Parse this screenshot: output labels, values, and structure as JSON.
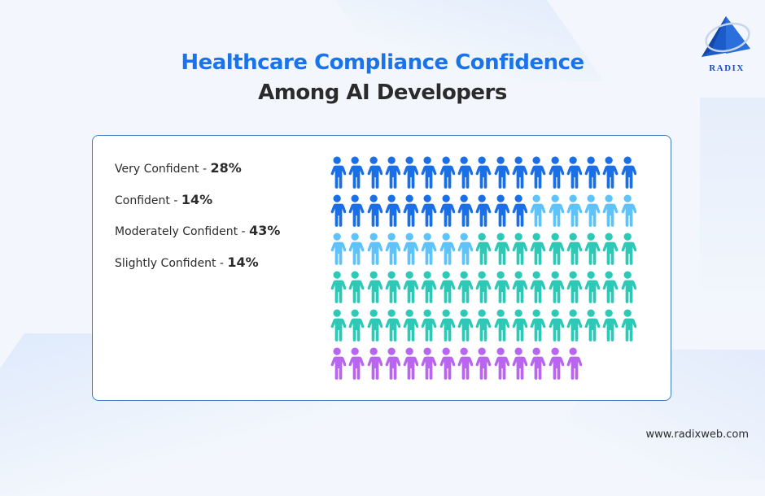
{
  "header": {
    "title_line1": "Healthcare Compliance Confidence",
    "title_line2": "Among AI Developers"
  },
  "logo": {
    "text": "RADIX"
  },
  "footer": {
    "url": "www.radixweb.com"
  },
  "legend": [
    {
      "label": "Very Confident - ",
      "value": "28%",
      "color": "#1a6fe6"
    },
    {
      "label": "Confident - ",
      "value": "14%",
      "color": "#5ec3fb"
    },
    {
      "label": "Moderately Confident - ",
      "value": "43%",
      "color": "#2ec9b6"
    },
    {
      "label": "Slightly Confident - ",
      "value": "14%",
      "color": "#b865f0"
    }
  ],
  "colors": {
    "title_accent": "#1a73e8",
    "card_border": "#3f7cc8"
  },
  "chart_data": {
    "type": "pictogram",
    "title": "Healthcare Compliance Confidence Among AI Developers",
    "categories": [
      "Very Confident",
      "Confident",
      "Moderately Confident",
      "Slightly Confident"
    ],
    "values": [
      28,
      14,
      43,
      14
    ],
    "unit": "%",
    "icons_per_category": [
      28,
      14,
      43,
      14
    ],
    "icons_per_row": 17,
    "rows": 6,
    "colors": [
      "#1a6fe6",
      "#5ec3fb",
      "#2ec9b6",
      "#b865f0"
    ],
    "legend_position": "left"
  }
}
